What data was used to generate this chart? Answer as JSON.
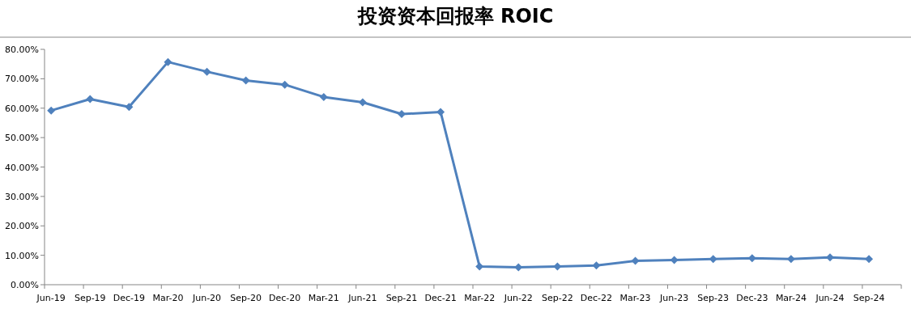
{
  "chart_data": {
    "type": "line",
    "title": "投资资本回报率 **ROIC**",
    "categories": [
      "Jun-19",
      "Sep-19",
      "Dec-19",
      "Mar-20",
      "Jun-20",
      "Sep-20",
      "Dec-20",
      "Mar-21",
      "Jun-21",
      "Sep-21",
      "Dec-21",
      "Mar-22",
      "Jun-22",
      "Sep-22",
      "Dec-22",
      "Mar-23",
      "Jun-23",
      "Sep-23",
      "Dec-23",
      "Mar-24",
      "Jun-24",
      "Sep-24"
    ],
    "values": [
      59.2,
      63.1,
      60.4,
      75.7,
      72.4,
      69.4,
      68.0,
      63.8,
      62.0,
      58.0,
      58.7,
      6.2,
      5.9,
      6.2,
      6.5,
      8.1,
      8.4,
      8.7,
      9.0,
      8.7,
      9.3,
      8.7
    ],
    "color": "#4f81bd",
    "marker": "diamond",
    "line_style": "solid",
    "grid": false,
    "ylim": [
      0,
      80
    ],
    "yticks": [
      {
        "value": 0,
        "label": "0.00%"
      },
      {
        "value": 10,
        "label": "10.00%"
      },
      {
        "value": 20,
        "label": "20.00%"
      },
      {
        "value": 30,
        "label": "30.00%"
      },
      {
        "value": 40,
        "label": "40.00%"
      },
      {
        "value": 50,
        "label": "50.00%"
      },
      {
        "value": 60,
        "label": "60.00%"
      },
      {
        "value": 70,
        "label": "70.00%"
      },
      {
        "value": 80,
        "label": "80.00%"
      }
    ]
  }
}
